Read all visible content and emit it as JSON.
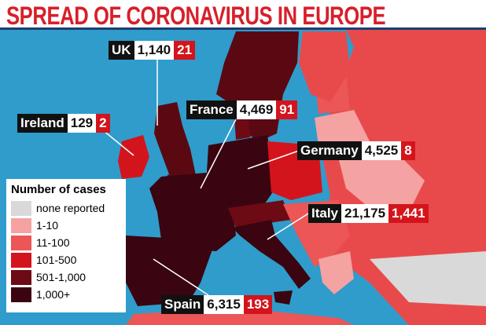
{
  "title": "SPREAD OF CORONAVIRUS IN EUROPE",
  "legend": {
    "title": "Number of cases",
    "items": [
      {
        "label": "none reported",
        "color": "#d9d9d9"
      },
      {
        "label": "1-10",
        "color": "#f4a2a2"
      },
      {
        "label": "11-100",
        "color": "#ec5656"
      },
      {
        "label": "101-500",
        "color": "#d4141c"
      },
      {
        "label": "501-1,000",
        "color": "#6e0a14"
      },
      {
        "label": "1,000+",
        "color": "#3a0510"
      }
    ]
  },
  "countries": [
    {
      "name": "UK",
      "cases": "1,140",
      "deaths": "21"
    },
    {
      "name": "Ireland",
      "cases": "129",
      "deaths": "2"
    },
    {
      "name": "France",
      "cases": "4,469",
      "deaths": "91"
    },
    {
      "name": "Germany",
      "cases": "4,525",
      "deaths": "8"
    },
    {
      "name": "Italy",
      "cases": "21,175",
      "deaths": "1,441"
    },
    {
      "name": "Spain",
      "cases": "6,315",
      "deaths": "193"
    }
  ]
}
